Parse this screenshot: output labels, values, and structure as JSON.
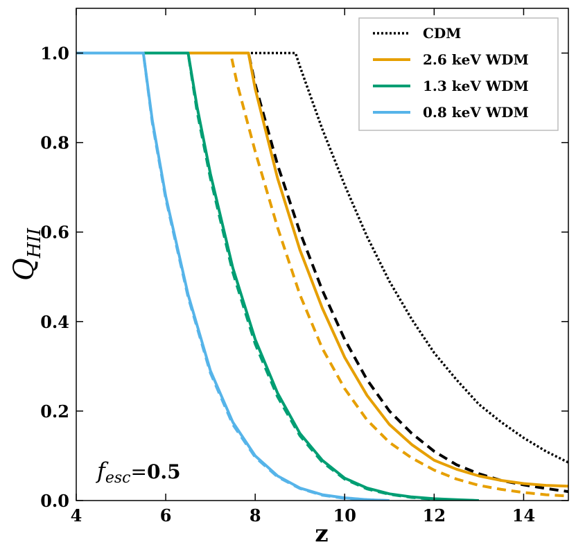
{
  "chart_data": {
    "type": "line",
    "xlabel": "z",
    "ylabel": "Q",
    "ylabel_sub": "HII",
    "xlim": [
      4,
      15
    ],
    "ylim": [
      0,
      1.1
    ],
    "xticks": [
      4,
      6,
      8,
      10,
      12,
      14
    ],
    "yticks": [
      0.0,
      0.2,
      0.4,
      0.6,
      0.8,
      1.0
    ],
    "xtick_labels": [
      "4",
      "6",
      "8",
      "10",
      "12",
      "14"
    ],
    "ytick_labels": [
      "0.0",
      "0.2",
      "0.4",
      "0.6",
      "0.8",
      "1.0"
    ],
    "grid": false,
    "legend_position": "top-right",
    "annotation": {
      "symbol": "f",
      "subscript": "esc",
      "equals": "=",
      "value": "0.5"
    },
    "legend": [
      {
        "label": "CDM",
        "color": "#000000",
        "style": "dotted"
      },
      {
        "label": "2.6 keV WDM",
        "color": "#E69F00",
        "style": "solid"
      },
      {
        "label": "1.3 keV WDM",
        "color": "#009E73",
        "style": "solid"
      },
      {
        "label": "0.8 keV WDM",
        "color": "#56B4E9",
        "style": "solid"
      }
    ],
    "series": [
      {
        "color": "#000000",
        "style": "dotted",
        "x": [
          4,
          8.9,
          9.0,
          9.5,
          10,
          10.5,
          11,
          11.5,
          12,
          12.5,
          13,
          13.5,
          14,
          14.5,
          15
        ],
        "y": [
          1.0,
          1.0,
          0.97,
          0.83,
          0.705,
          0.59,
          0.49,
          0.405,
          0.33,
          0.27,
          0.215,
          0.175,
          0.14,
          0.11,
          0.085
        ]
      },
      {
        "color": "#000000",
        "style": "dashed",
        "x": [
          4,
          7.85,
          8.0,
          8.5,
          9.0,
          9.5,
          10.0,
          10.5,
          11.0,
          11.5,
          12.0,
          12.5,
          13.0,
          13.5,
          14.0,
          14.5,
          15.0
        ],
        "y": [
          1.0,
          1.0,
          0.93,
          0.75,
          0.6,
          0.47,
          0.36,
          0.27,
          0.2,
          0.15,
          0.11,
          0.08,
          0.06,
          0.045,
          0.035,
          0.027,
          0.02
        ]
      },
      {
        "color": "#E69F00",
        "style": "solid",
        "x": [
          4,
          7.85,
          8.0,
          8.5,
          9.0,
          9.5,
          10.0,
          10.5,
          11.0,
          11.5,
          12.0,
          12.5,
          13.0,
          13.5,
          14.0,
          14.5,
          15.0
        ],
        "y": [
          1.0,
          1.0,
          0.92,
          0.72,
          0.56,
          0.43,
          0.32,
          0.235,
          0.17,
          0.125,
          0.09,
          0.07,
          0.055,
          0.045,
          0.038,
          0.034,
          0.032
        ]
      },
      {
        "color": "#E69F00",
        "style": "dashed",
        "x": [
          4,
          7.45,
          7.6,
          8.0,
          8.5,
          9.0,
          9.5,
          10.0,
          10.5,
          11.0,
          11.5,
          12.0,
          12.5,
          13.0,
          13.5,
          14.0,
          14.5,
          15.0
        ],
        "y": [
          1.0,
          1.0,
          0.93,
          0.78,
          0.61,
          0.46,
          0.34,
          0.25,
          0.18,
          0.13,
          0.095,
          0.068,
          0.048,
          0.034,
          0.025,
          0.018,
          0.013,
          0.01
        ]
      },
      {
        "color": "#009E73",
        "style": "solid",
        "x": [
          4,
          6.5,
          6.7,
          7.0,
          7.5,
          8.0,
          8.5,
          9.0,
          9.5,
          10.0,
          10.5,
          11.0,
          11.5,
          12.0,
          12.5,
          13.0
        ],
        "y": [
          1.0,
          1.0,
          0.88,
          0.73,
          0.52,
          0.36,
          0.24,
          0.15,
          0.09,
          0.05,
          0.028,
          0.015,
          0.008,
          0.004,
          0.002,
          0.0
        ]
      },
      {
        "color": "#009E73",
        "style": "dashed",
        "x": [
          4,
          6.5,
          6.7,
          7.0,
          7.5,
          8.0,
          8.5,
          9.0,
          9.5,
          10.0,
          10.5,
          11.0,
          11.5,
          12.0,
          12.5,
          13.0
        ],
        "y": [
          1.0,
          1.0,
          0.87,
          0.72,
          0.51,
          0.35,
          0.232,
          0.145,
          0.086,
          0.048,
          0.026,
          0.014,
          0.007,
          0.003,
          0.001,
          0.0
        ]
      },
      {
        "color": "#56B4E9",
        "style": "solid",
        "x": [
          4,
          5.5,
          5.7,
          6.0,
          6.5,
          7.0,
          7.5,
          8.0,
          8.5,
          9.0,
          9.5,
          10.0,
          10.5,
          11.0
        ],
        "y": [
          1.0,
          1.0,
          0.85,
          0.68,
          0.46,
          0.29,
          0.175,
          0.1,
          0.055,
          0.028,
          0.013,
          0.006,
          0.002,
          0.0
        ]
      },
      {
        "color": "#56B4E9",
        "style": "dashed",
        "x": [
          4,
          5.5,
          5.7,
          6.0,
          6.5,
          7.0,
          7.5,
          8.0,
          8.5,
          9.0,
          9.5,
          10.0,
          10.5,
          11.0
        ],
        "y": [
          1.0,
          1.0,
          0.845,
          0.675,
          0.455,
          0.285,
          0.17,
          0.097,
          0.053,
          0.027,
          0.012,
          0.005,
          0.002,
          0.0
        ]
      }
    ]
  }
}
